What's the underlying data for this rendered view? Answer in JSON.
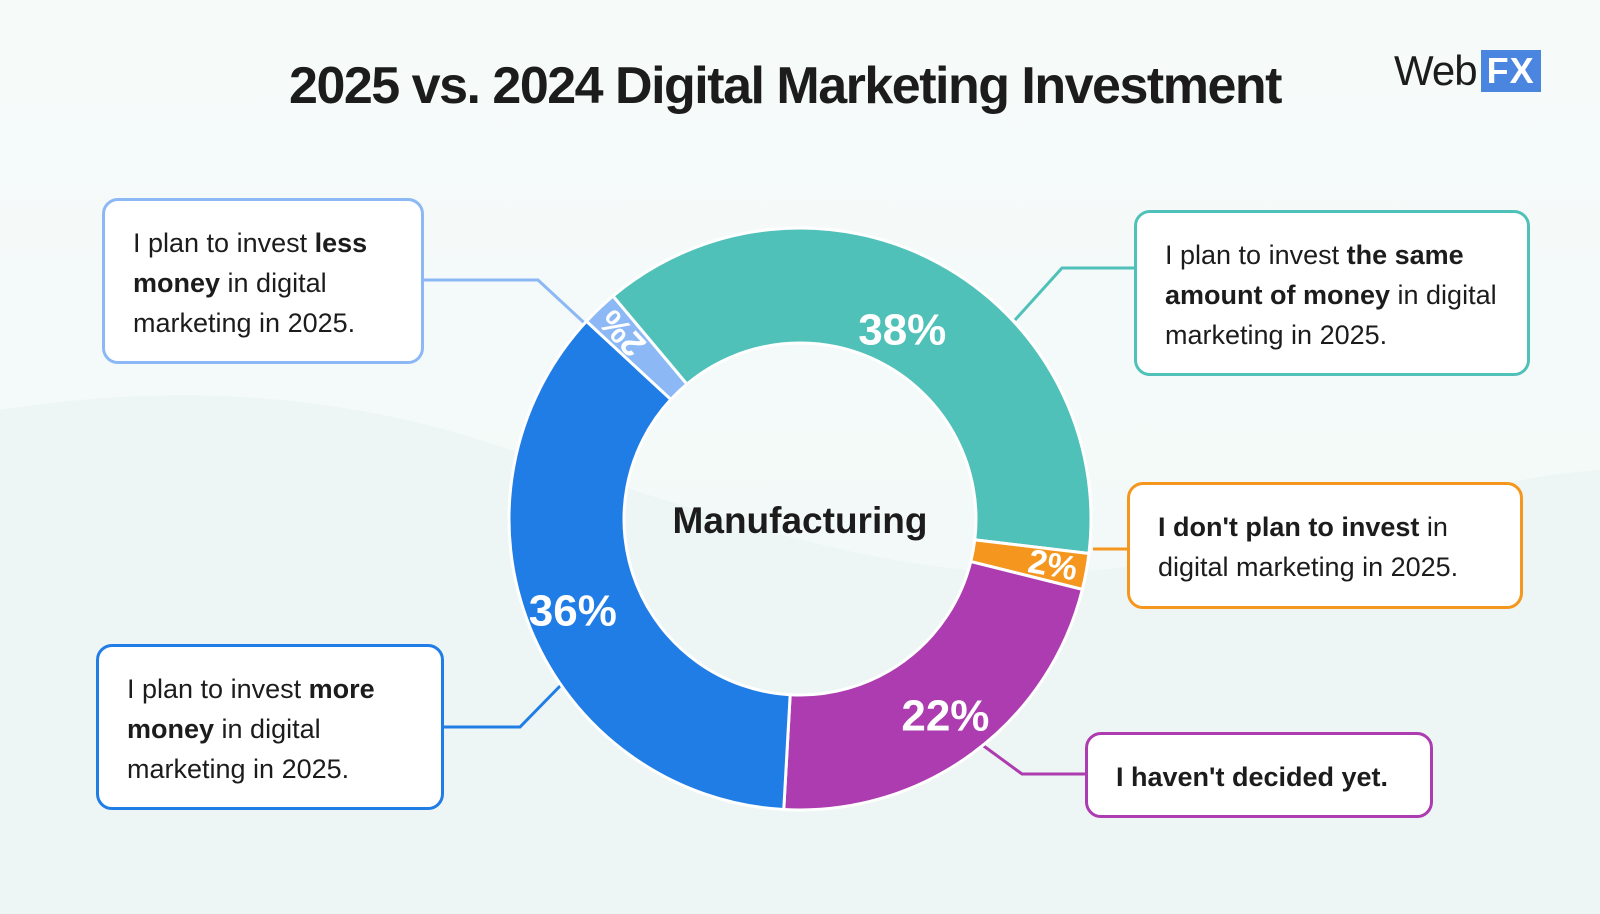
{
  "title": "2025 vs. 2024 Digital Marketing Investment",
  "logo": {
    "web": "Web",
    "fx": "FX"
  },
  "chart_data": {
    "type": "pie",
    "variant": "donut",
    "center_label": "Manufacturing",
    "slices": [
      {
        "label_parts": [
          [
            "I plan to invest ",
            false
          ],
          [
            "the same amount of money",
            true
          ],
          [
            " in digital marketing in 2025.",
            false
          ]
        ],
        "value": 38,
        "display": "38%",
        "color": "#50c1b9"
      },
      {
        "label_parts": [
          [
            "I don't plan to invest",
            true
          ],
          [
            " in digital marketing in 2025.",
            false
          ]
        ],
        "value": 2,
        "display": "2%",
        "color": "#f5961e"
      },
      {
        "label_parts": [
          [
            "I haven't decided yet.",
            true
          ]
        ],
        "value": 22,
        "display": "22%",
        "color": "#ac3caf"
      },
      {
        "label_parts": [
          [
            "I plan to invest ",
            false
          ],
          [
            "more money",
            true
          ],
          [
            " in digital marketing in 2025.",
            false
          ]
        ],
        "value": 36,
        "display": "36%",
        "color": "#217de6"
      },
      {
        "label_parts": [
          [
            "I plan to invest ",
            false
          ],
          [
            "less money",
            true
          ],
          [
            " in digital marketing in 2025.",
            false
          ]
        ],
        "value": 2,
        "display": "2%",
        "color": "#8cb8f5"
      }
    ]
  }
}
